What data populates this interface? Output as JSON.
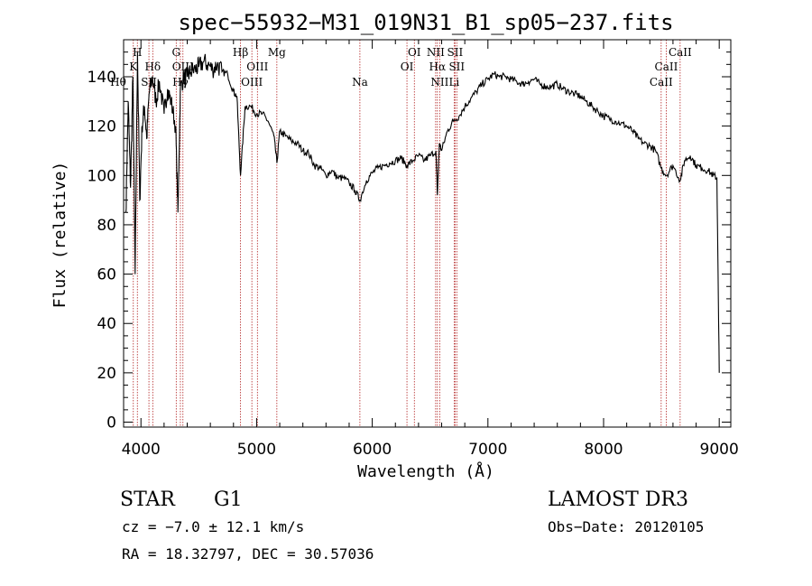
{
  "chart_data": {
    "type": "line",
    "title": "spec−55932−M31_019N31_B1_sp05−237.fits",
    "xlabel": "Wavelength (Å)",
    "ylabel": "Flux (relative)",
    "xlim": [
      3850,
      9100
    ],
    "ylim": [
      -2,
      155
    ],
    "x_ticks": [
      4000,
      5000,
      6000,
      7000,
      8000,
      9000
    ],
    "y_ticks": [
      0,
      20,
      40,
      60,
      80,
      100,
      120,
      140
    ],
    "spectrum": {
      "x": [
        3870,
        3890,
        3910,
        3930,
        3950,
        3970,
        3990,
        4010,
        4030,
        4050,
        4070,
        4100,
        4130,
        4160,
        4200,
        4230,
        4260,
        4300,
        4320,
        4340,
        4370,
        4400,
        4430,
        4470,
        4500,
        4540,
        4580,
        4620,
        4660,
        4700,
        4750,
        4800,
        4830,
        4861,
        4900,
        4950,
        5000,
        5050,
        5100,
        5150,
        5175,
        5200,
        5250,
        5300,
        5350,
        5400,
        5450,
        5500,
        5550,
        5600,
        5650,
        5700,
        5750,
        5800,
        5850,
        5893,
        5950,
        6000,
        6050,
        6100,
        6150,
        6200,
        6250,
        6300,
        6350,
        6400,
        6450,
        6500,
        6550,
        6563,
        6580,
        6600,
        6650,
        6700,
        6750,
        6800,
        6850,
        6900,
        6950,
        7000,
        7050,
        7100,
        7150,
        7200,
        7250,
        7300,
        7350,
        7400,
        7450,
        7500,
        7550,
        7600,
        7650,
        7700,
        7750,
        7800,
        7850,
        7900,
        7950,
        8000,
        8050,
        8100,
        8150,
        8200,
        8250,
        8300,
        8350,
        8400,
        8450,
        8498,
        8542,
        8600,
        8662,
        8700,
        8750,
        8800,
        8850,
        8900,
        8950,
        8980,
        9000
      ],
      "y": [
        85,
        130,
        95,
        140,
        60,
        150,
        90,
        120,
        128,
        115,
        133,
        140,
        130,
        138,
        125,
        135,
        130,
        120,
        85,
        135,
        140,
        140,
        142,
        143,
        144,
        146,
        145,
        143,
        145,
        142,
        141,
        134,
        132,
        100,
        128,
        128,
        125,
        125,
        122,
        116,
        105,
        118,
        116,
        114,
        113,
        110,
        109,
        104,
        103,
        100,
        102,
        99,
        99,
        97,
        94,
        90,
        98,
        101,
        103,
        104,
        105,
        106,
        107,
        104,
        106,
        108,
        106,
        108,
        110,
        92,
        113,
        110,
        118,
        122,
        124,
        128,
        131,
        134,
        137,
        139,
        141,
        140,
        140,
        139,
        138,
        137,
        138,
        139,
        137,
        136,
        136,
        137,
        135,
        134,
        133,
        132,
        130,
        128,
        126,
        124,
        123,
        122,
        121,
        120,
        118,
        115,
        113,
        112,
        110,
        103,
        100,
        104,
        98,
        106,
        108,
        104,
        103,
        102,
        100,
        99,
        20
      ]
    },
    "lines": [
      {
        "label": "Hθ",
        "wave": 3797,
        "row": 3
      },
      {
        "label": "K",
        "wave": 3934,
        "row": 2
      },
      {
        "label": "H",
        "wave": 3969,
        "row": 1
      },
      {
        "label": "SII",
        "wave": 4069,
        "row": 3
      },
      {
        "label": "Hδ",
        "wave": 4102,
        "row": 2
      },
      {
        "label": "G",
        "wave": 4305,
        "row": 1
      },
      {
        "label": "OIII",
        "wave": 4363,
        "row": 2
      },
      {
        "label": "Hγ",
        "wave": 4341,
        "row": 3
      },
      {
        "label": "Hβ",
        "wave": 4861,
        "row": 1
      },
      {
        "label": "OIII",
        "wave": 4959,
        "row": 3
      },
      {
        "label": "OIII",
        "wave": 5007,
        "row": 2
      },
      {
        "label": "Mg",
        "wave": 5175,
        "row": 1
      },
      {
        "label": "Na",
        "wave": 5893,
        "row": 3
      },
      {
        "label": "OI",
        "wave": 6300,
        "row": 2
      },
      {
        "label": "OI",
        "wave": 6364,
        "row": 1
      },
      {
        "label": "NII",
        "wave": 6548,
        "row": 1
      },
      {
        "label": "Hα",
        "wave": 6563,
        "row": 2
      },
      {
        "label": "NII",
        "wave": 6583,
        "row": 3
      },
      {
        "label": "SII",
        "wave": 6716,
        "row": 1
      },
      {
        "label": "SII",
        "wave": 6731,
        "row": 2
      },
      {
        "label": "Li",
        "wave": 6708,
        "row": 3
      },
      {
        "label": "CaII",
        "wave": 8498,
        "row": 3
      },
      {
        "label": "CaII",
        "wave": 8542,
        "row": 2
      },
      {
        "label": "CaII",
        "wave": 8662,
        "row": 1
      }
    ],
    "colors": {
      "line_markers": "#b22222",
      "spectrum": "#000000",
      "axes": "#000000"
    }
  },
  "info": {
    "class": "STAR",
    "subclass": "G1",
    "survey": "LAMOST DR3",
    "cz": "cz = −7.0 ± 12.1 km/s",
    "obs_date": "Obs−Date: 20120105",
    "coords": "RA =  18.32797, DEC =  30.57036"
  }
}
